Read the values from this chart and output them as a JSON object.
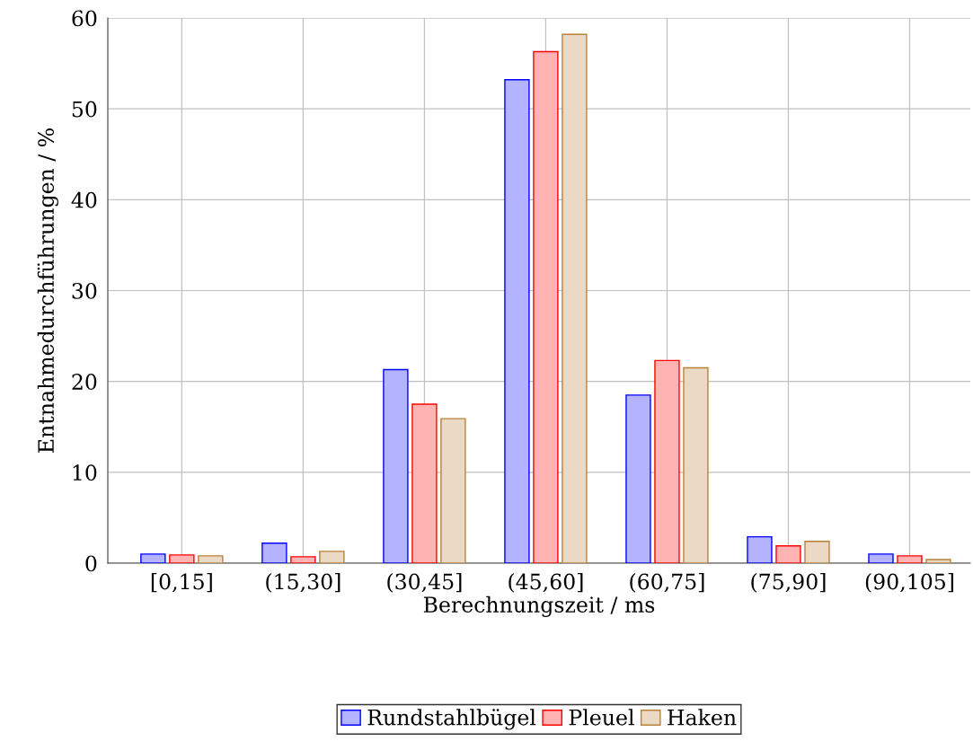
{
  "chart_data": {
    "type": "bar",
    "xlabel": "Berechnungszeit / ms",
    "ylabel": "Entnahmedurchführungen / %",
    "categories": [
      "[0,15]",
      "(15,30]",
      "(30,45]",
      "(45,60]",
      "(60,75]",
      "(75,90]",
      "(90,105]"
    ],
    "series": [
      {
        "name": "Rundstahlbügel",
        "color": "#b3b3ff",
        "values": [
          1.0,
          2.2,
          21.3,
          53.2,
          18.5,
          2.9,
          1.0
        ]
      },
      {
        "name": "Pleuel",
        "color": "#ffb3b3",
        "values": [
          0.9,
          0.7,
          17.5,
          56.3,
          22.3,
          1.9,
          0.8
        ]
      },
      {
        "name": "Haken",
        "color": "#ead9c4",
        "values": [
          0.8,
          1.3,
          15.9,
          58.2,
          21.5,
          2.4,
          0.4
        ]
      }
    ],
    "ylim": [
      0,
      60
    ],
    "yticks": [
      0,
      10,
      20,
      30,
      40,
      50,
      60
    ],
    "grid": true,
    "legend": "bottom"
  }
}
